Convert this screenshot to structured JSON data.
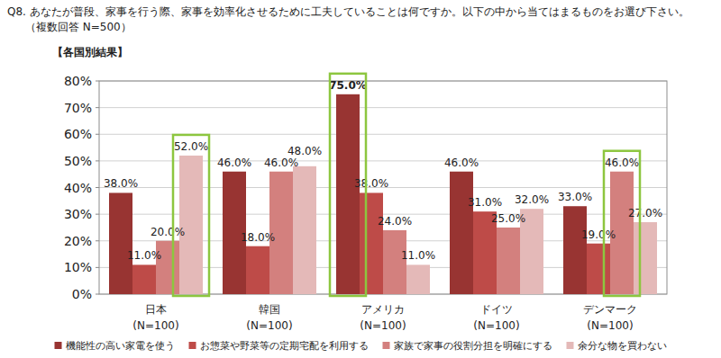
{
  "chart_data": {
    "type": "bar",
    "title": "Q8. あなたが普段、家事を行う際、家事を効率化させるために工夫していることは何ですか。以下の中から当てはまるものをお選び下さい。",
    "subtitle": "（複数回答 N=500）",
    "annotations": [
      "【各国別結果】"
    ],
    "categories": [
      "日本\n(N=100)",
      "韓国\n(N=100)",
      "アメリカ\n(N=100)",
      "ドイツ\n(N=100)",
      "デンマーク\n(N=100)"
    ],
    "series": [
      {
        "name": "機能性の高い家電を使う",
        "color": "#983432",
        "values": [
          38,
          46,
          75,
          46,
          33
        ],
        "value_labels": [
          "38.0%",
          "46.0%",
          "75.0%",
          "46.0%",
          "33.0%"
        ]
      },
      {
        "name": "お惣菜や野菜等の定期宅配を利用する",
        "color": "#be4b48",
        "values": [
          11,
          18,
          38,
          31,
          19
        ],
        "value_labels": [
          "11.0%",
          "18.0%",
          "38.0%",
          "31.0%",
          "19.0%"
        ]
      },
      {
        "name": "家族で家事の役割分担を明確にする",
        "color": "#d3807e",
        "values": [
          20,
          46,
          24,
          25,
          46
        ],
        "value_labels": [
          "20.0%",
          "46.0%",
          "24.0%",
          "25.0%",
          "46.0%"
        ]
      },
      {
        "name": "余分な物を買わない",
        "color": "#e4b9b8",
        "values": [
          52,
          48,
          11,
          32,
          27
        ],
        "value_labels": [
          "52.0%",
          "48.0%",
          "11.0%",
          "32.0%",
          "27.0%"
        ]
      }
    ],
    "ylim": [
      0,
      80
    ],
    "yticks": [
      {
        "value": 0,
        "label": "0%"
      },
      {
        "value": 10,
        "label": "10%"
      },
      {
        "value": 20,
        "label": "20%"
      },
      {
        "value": 30,
        "label": "30%"
      },
      {
        "value": 40,
        "label": "40%"
      },
      {
        "value": 50,
        "label": "50%"
      },
      {
        "value": 60,
        "label": "60%"
      },
      {
        "value": 70,
        "label": "70%"
      },
      {
        "value": 80,
        "label": "80%"
      }
    ],
    "grid": true,
    "legend": "bottom",
    "data_labels": true
  }
}
